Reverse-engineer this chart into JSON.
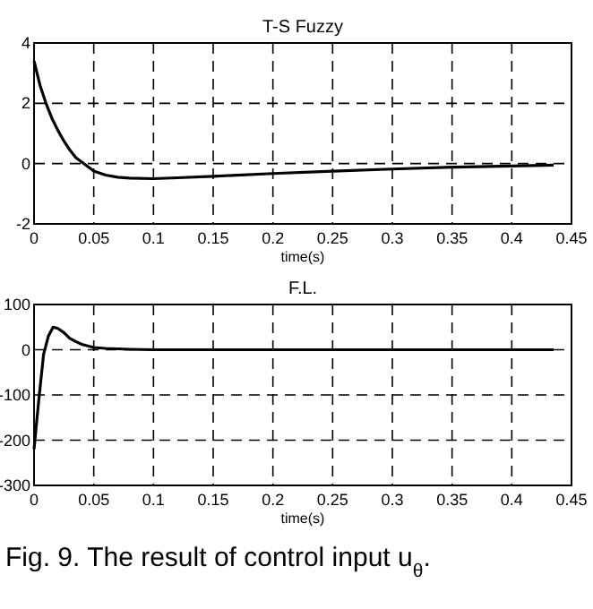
{
  "chart_data": [
    {
      "type": "line",
      "title": "T-S Fuzzy",
      "xlabel": "time(s)",
      "xlim": [
        0,
        0.45
      ],
      "xticks": [
        0,
        0.05,
        0.1,
        0.15,
        0.2,
        0.25,
        0.3,
        0.35,
        0.4,
        0.45
      ],
      "ylim": [
        -2,
        4
      ],
      "yticks": [
        -2,
        0,
        2,
        4
      ],
      "grid": true,
      "line_style": "solid",
      "series": [
        {
          "color": "#000000",
          "x": [
            0,
            0.005,
            0.01,
            0.015,
            0.02,
            0.025,
            0.03,
            0.035,
            0.04,
            0.05,
            0.06,
            0.07,
            0.08,
            0.1,
            0.12,
            0.15,
            0.2,
            0.25,
            0.3,
            0.35,
            0.4,
            0.435
          ],
          "values": [
            3.4,
            2.6,
            2.0,
            1.5,
            1.1,
            0.75,
            0.45,
            0.2,
            0.05,
            -0.25,
            -0.38,
            -0.45,
            -0.48,
            -0.5,
            -0.47,
            -0.42,
            -0.33,
            -0.25,
            -0.18,
            -0.12,
            -0.08,
            -0.05
          ]
        }
      ]
    },
    {
      "type": "line",
      "title": "F.L.",
      "xlabel": "time(s)",
      "xlim": [
        0,
        0.45
      ],
      "xticks": [
        0,
        0.05,
        0.1,
        0.15,
        0.2,
        0.25,
        0.3,
        0.35,
        0.4,
        0.45
      ],
      "ylim": [
        -300,
        100
      ],
      "yticks": [
        -300,
        -200,
        -100,
        0,
        100
      ],
      "grid": true,
      "line_style": "solid",
      "annotations": [
        "Fig. 9. The result of control input u$_{θ}$."
      ],
      "series": [
        {
          "color": "#000000",
          "x": [
            0,
            0.004,
            0.008,
            0.012,
            0.016,
            0.02,
            0.025,
            0.03,
            0.035,
            0.04,
            0.05,
            0.06,
            0.08,
            0.1,
            0.2,
            0.3,
            0.435
          ],
          "values": [
            -220,
            -110,
            -10,
            30,
            50,
            47,
            38,
            25,
            18,
            12,
            5,
            3,
            1,
            0,
            0,
            0,
            0
          ]
        }
      ]
    }
  ]
}
